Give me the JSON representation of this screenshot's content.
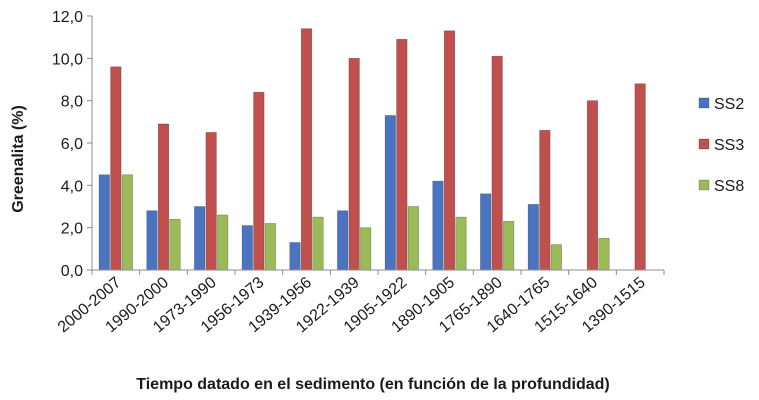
{
  "chart_data": {
    "type": "bar",
    "title": "",
    "xlabel": "Tiempo datado en el sedimento (en función de la profundidad)",
    "ylabel": "Greenalita (%)",
    "ylim": [
      0,
      12
    ],
    "yticks": [
      "0,0",
      "2,0",
      "4,0",
      "6,0",
      "8,0",
      "10,0",
      "12,0"
    ],
    "grid": false,
    "legend_position": "right",
    "categories": [
      "2000-2007",
      "1990-2000",
      "1973-1990",
      "1956-1973",
      "1939-1956",
      "1922-1939",
      "1905-1922",
      "1890-1905",
      "1765-1890",
      "1640-1765",
      "1515-1640",
      "1390-1515"
    ],
    "series": [
      {
        "name": "SS2",
        "color": "#4a74c0",
        "values": [
          4.5,
          2.8,
          3.0,
          2.1,
          1.3,
          2.8,
          7.3,
          4.2,
          3.6,
          3.1,
          null,
          null
        ]
      },
      {
        "name": "SS3",
        "color": "#c0504d",
        "values": [
          9.6,
          6.9,
          6.5,
          8.4,
          11.4,
          10.0,
          10.9,
          11.3,
          10.1,
          6.6,
          8.0,
          8.8
        ]
      },
      {
        "name": "SS8",
        "color": "#9bbb59",
        "values": [
          4.5,
          2.4,
          2.6,
          2.2,
          2.5,
          2.0,
          3.0,
          2.5,
          2.3,
          1.2,
          1.5,
          null
        ]
      }
    ]
  }
}
